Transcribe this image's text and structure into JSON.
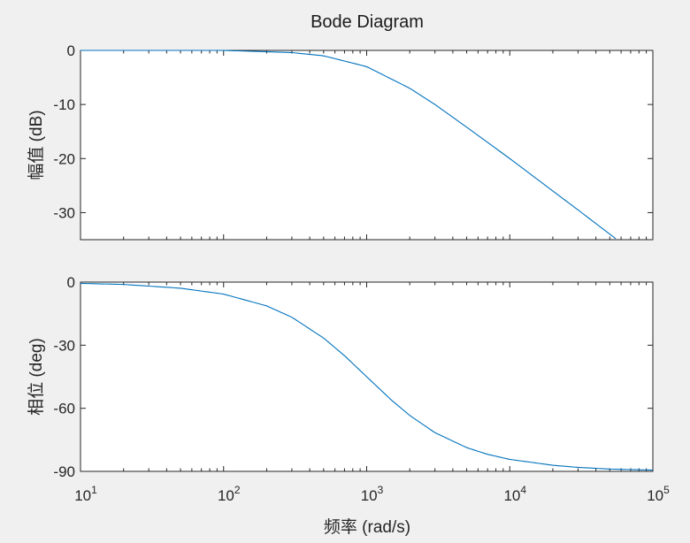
{
  "chart_data": {
    "type": "line",
    "title": "Bode Diagram",
    "xlabel": "频率 (rad/s)",
    "x_scale": "log",
    "xlim": [
      10,
      100000
    ],
    "x_ticks": [
      {
        "base": "10",
        "exp": "1"
      },
      {
        "base": "10",
        "exp": "2"
      },
      {
        "base": "10",
        "exp": "3"
      },
      {
        "base": "10",
        "exp": "4"
      },
      {
        "base": "10",
        "exp": "5"
      }
    ],
    "grid": false,
    "line_color": "#0072bd",
    "panels": [
      {
        "id": "magnitude",
        "ylabel": "幅值 (dB)",
        "ylim": [
          -35,
          0
        ],
        "yticks": [
          0,
          -10,
          -20,
          -30
        ],
        "series": [
          {
            "x": [
              10,
              30,
              100,
              300,
              500,
              1000,
              2000,
              3000,
              5000,
              10000,
              20000,
              30000,
              55000
            ],
            "y": [
              0.0,
              0.0,
              0.0,
              -0.4,
              -1.0,
              -3.0,
              -7.0,
              -10.0,
              -14.2,
              -20.0,
              -26.0,
              -29.5,
              -34.8
            ]
          }
        ]
      },
      {
        "id": "phase",
        "ylabel": "相位 (deg)",
        "ylim": [
          -90,
          0
        ],
        "yticks": [
          0,
          -30,
          -60,
          -90
        ],
        "series": [
          {
            "x": [
              10,
              20,
              50,
              100,
              200,
              300,
              500,
              700,
              1000,
              1500,
              2000,
              3000,
              5000,
              7000,
              10000,
              20000,
              30000,
              50000,
              100000
            ],
            "y": [
              -0.6,
              -1.1,
              -2.9,
              -5.7,
              -11.3,
              -16.7,
              -26.6,
              -35.0,
              -45.0,
              -56.3,
              -63.4,
              -71.6,
              -78.7,
              -81.9,
              -84.3,
              -87.1,
              -88.1,
              -88.9,
              -89.4
            ]
          }
        ]
      }
    ]
  }
}
